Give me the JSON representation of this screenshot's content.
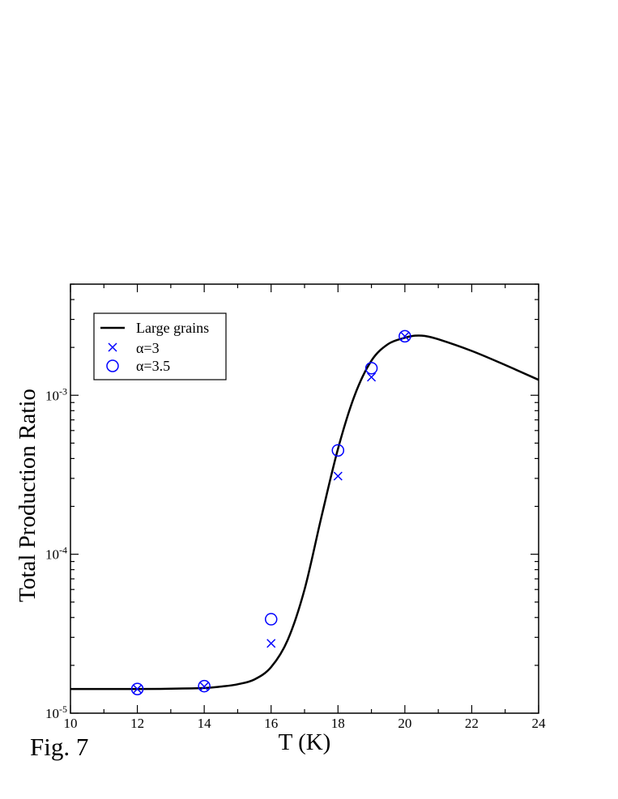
{
  "figure_label": "Fig. 7",
  "chart_data": {
    "type": "line",
    "xlabel": "T (K)",
    "ylabel": "Total Production Ratio",
    "xlim": [
      10,
      24
    ],
    "ylim": [
      1e-05,
      0.005
    ],
    "y_scale": "log",
    "x_ticks": [
      10,
      12,
      14,
      16,
      18,
      20,
      22,
      24
    ],
    "x_tick_labels": [
      "10",
      "12",
      "14",
      "16",
      "18",
      "20",
      "22",
      "24"
    ],
    "y_ticks": [
      {
        "value": 1e-05,
        "base": "10",
        "exp": "-5"
      },
      {
        "value": 0.0001,
        "base": "10",
        "exp": "-4"
      },
      {
        "value": 0.001,
        "base": "10",
        "exp": "-3"
      }
    ],
    "legend_position": "top-left",
    "grid": false,
    "series": [
      {
        "name": "Large grains",
        "kind": "line",
        "color": "#000000",
        "x": [
          10,
          12,
          13,
          14,
          14.5,
          15,
          15.5,
          16,
          16.5,
          17,
          17.5,
          18,
          18.5,
          19,
          19.5,
          20,
          20.3,
          20.6,
          21,
          22,
          23,
          24
        ],
        "y": [
          1.42e-05,
          1.42e-05,
          1.425e-05,
          1.44e-05,
          1.47e-05,
          1.52e-05,
          1.63e-05,
          1.95e-05,
          2.9e-05,
          6e-05,
          0.00017,
          0.00046,
          0.001,
          0.00165,
          0.0021,
          0.0023,
          0.00237,
          0.00236,
          0.00225,
          0.0019,
          0.00155,
          0.00125
        ]
      },
      {
        "name": "α=3",
        "kind": "scatter",
        "marker": "x",
        "color": "#0000ff",
        "x": [
          12,
          14,
          16,
          18,
          19,
          20
        ],
        "y": [
          1.42e-05,
          1.47e-05,
          2.75e-05,
          0.00031,
          0.0013,
          0.00235
        ]
      },
      {
        "name": "α=3.5",
        "kind": "scatter",
        "marker": "circle",
        "color": "#0000ff",
        "x": [
          12,
          14,
          16,
          18,
          19,
          20
        ],
        "y": [
          1.42e-05,
          1.48e-05,
          3.9e-05,
          0.00045,
          0.00148,
          0.00235
        ]
      }
    ]
  }
}
